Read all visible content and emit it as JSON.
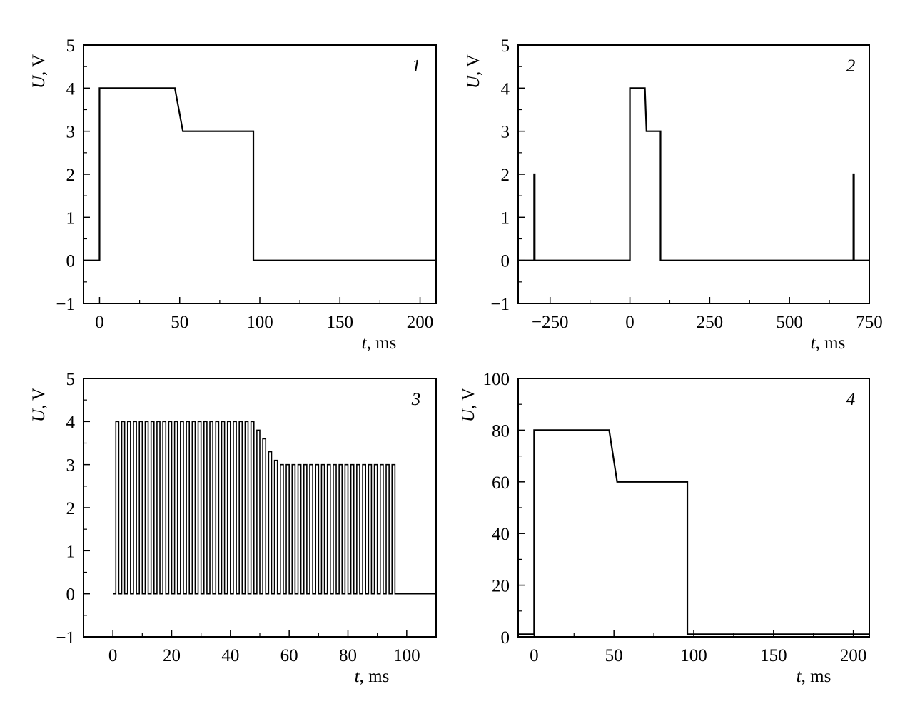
{
  "figure": {
    "background": "#ffffff",
    "line_color": "#000000"
  },
  "chart_data": [
    {
      "panel": "1",
      "type": "line",
      "xlabel": {
        "var": "t",
        "unit": ", ms"
      },
      "ylabel": {
        "var": "U",
        "unit": ", V"
      },
      "xlim": [
        -10,
        210
      ],
      "ylim": [
        -1,
        5
      ],
      "xticks": [
        0,
        50,
        100,
        150,
        200
      ],
      "yticks": [
        -1,
        0,
        1,
        2,
        3,
        4,
        5
      ],
      "xtick_labels": [
        "0",
        "50",
        "100",
        "150",
        "200"
      ],
      "ytick_labels": [
        "−1",
        "0",
        "1",
        "2",
        "3",
        "4",
        "5"
      ],
      "series": [
        {
          "x": [
            -10,
            0,
            0,
            47,
            52,
            96,
            96,
            210
          ],
          "y": [
            0,
            0,
            4,
            4,
            3,
            3,
            0,
            0
          ]
        }
      ]
    },
    {
      "panel": "2",
      "type": "line",
      "xlabel": {
        "var": "t",
        "unit": ", ms"
      },
      "ylabel": {
        "var": "U",
        "unit": ", V"
      },
      "xlim": [
        -350,
        750
      ],
      "ylim": [
        -1,
        5
      ],
      "xticks": [
        -250,
        0,
        250,
        500,
        750
      ],
      "yticks": [
        -1,
        0,
        1,
        2,
        3,
        4,
        5
      ],
      "xtick_labels": [
        "−250",
        "0",
        "250",
        "500",
        "750"
      ],
      "ytick_labels": [
        "−1",
        "0",
        "1",
        "2",
        "3",
        "4",
        "5"
      ],
      "series": [
        {
          "x": [
            -350,
            -300,
            -300,
            -298,
            -298,
            0,
            0,
            47,
            52,
            96,
            96,
            700,
            700,
            702,
            702,
            750
          ],
          "y": [
            0,
            0,
            2,
            2,
            0,
            0,
            4,
            4,
            3,
            3,
            0,
            0,
            2,
            2,
            0,
            0
          ]
        }
      ]
    },
    {
      "panel": "3",
      "type": "line",
      "xlabel": {
        "var": "t",
        "unit": ", ms"
      },
      "ylabel": {
        "var": "U",
        "unit": ", V"
      },
      "xlim": [
        -10,
        110
      ],
      "ylim": [
        -1,
        5
      ],
      "xticks": [
        0,
        20,
        40,
        60,
        80,
        100
      ],
      "yticks": [
        -1,
        0,
        1,
        2,
        3,
        4,
        5
      ],
      "xtick_labels": [
        "0",
        "20",
        "40",
        "60",
        "80",
        "100"
      ],
      "ytick_labels": [
        "−1",
        "0",
        "1",
        "2",
        "3",
        "4",
        "5"
      ],
      "pulse_train": {
        "period_ms": 2,
        "pulse_width_ms": 1,
        "first_pulse_ms": 1,
        "last_pulse_ms": 95,
        "envelope_t": [
          0,
          47,
          56,
          96
        ],
        "envelope_v": [
          4,
          4,
          3,
          3
        ]
      }
    },
    {
      "panel": "4",
      "type": "line",
      "xlabel": {
        "var": "t",
        "unit": ", ms"
      },
      "ylabel": {
        "var": "U",
        "unit": ", V"
      },
      "xlim": [
        -10,
        210
      ],
      "ylim": [
        0,
        100
      ],
      "xticks": [
        0,
        50,
        100,
        150,
        200
      ],
      "yticks": [
        0,
        20,
        40,
        60,
        80,
        100
      ],
      "xtick_labels": [
        "0",
        "50",
        "100",
        "150",
        "200"
      ],
      "ytick_labels": [
        "0",
        "20",
        "40",
        "60",
        "80",
        "100"
      ],
      "series": [
        {
          "x": [
            -10,
            0,
            0,
            47,
            52,
            96,
            96,
            210
          ],
          "y": [
            1,
            1,
            80,
            80,
            60,
            60,
            1,
            1
          ]
        }
      ]
    }
  ]
}
